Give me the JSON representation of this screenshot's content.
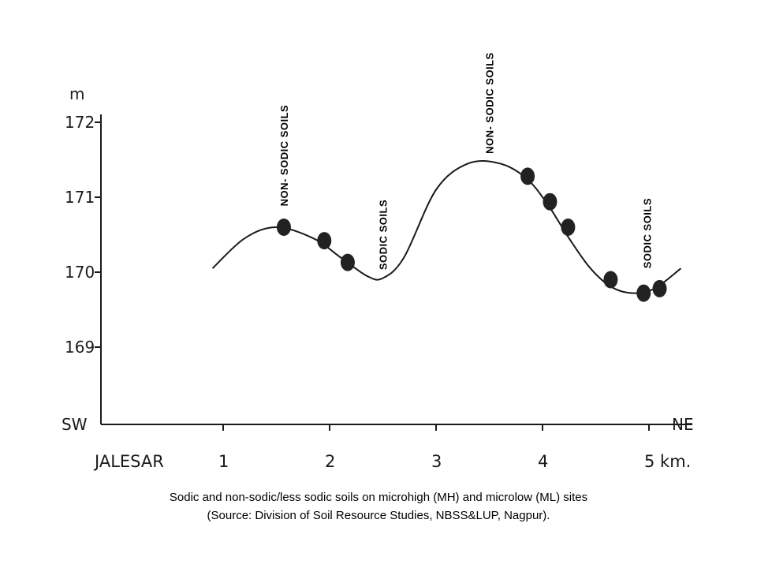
{
  "chart_data": {
    "type": "line",
    "ylabel": "m",
    "yticks": [
      "172",
      "171",
      "170",
      "169"
    ],
    "ytick_values": [
      172,
      171,
      170,
      169
    ],
    "ylim": [
      168,
      172
    ],
    "xlim": [
      -0.2,
      5.35
    ],
    "xticks": [
      "JALESAR",
      "1",
      "2",
      "3",
      "4",
      "5 km."
    ],
    "xtick_values": [
      0,
      1,
      2,
      3,
      4,
      5
    ],
    "axis_left_label": "SW",
    "axis_right_label": "NE",
    "grid": false,
    "curve": {
      "x": [
        0.9,
        1.2,
        1.5,
        1.85,
        2.1,
        2.35,
        2.5,
        2.7,
        3.0,
        3.3,
        3.6,
        3.85,
        4.05,
        4.25,
        4.45,
        4.65,
        4.85,
        5.05,
        5.3
      ],
      "y": [
        170.05,
        170.45,
        170.6,
        170.45,
        170.2,
        169.95,
        169.92,
        170.2,
        171.1,
        171.45,
        171.45,
        171.25,
        170.9,
        170.45,
        170.05,
        169.8,
        169.72,
        169.78,
        170.05
      ]
    },
    "points": {
      "x": [
        1.57,
        1.95,
        2.17,
        3.86,
        4.07,
        4.24,
        4.64,
        4.95,
        5.1
      ],
      "y": [
        170.6,
        170.42,
        170.13,
        171.28,
        170.94,
        170.6,
        169.9,
        169.72,
        169.78
      ]
    },
    "annotations": [
      {
        "text": "NON- SODIC SOILS",
        "x": 1.57,
        "y": 170.88
      },
      {
        "text": "SODIC SOILS",
        "x": 2.5,
        "y": 170.03
      },
      {
        "text": "NON- SODIC SOILS",
        "x": 3.5,
        "y": 171.58
      },
      {
        "text": "SODIC SOILS",
        "x": 4.98,
        "y": 170.05
      }
    ]
  },
  "caption": {
    "line1": "Sodic and non-sodic/less sodic soils on microhigh (MH) and microlow (ML) sites",
    "line2": "(Source: Division of Soil Resource Studies, NBSS&LUP, Nagpur)."
  },
  "colors": {
    "ink": "#1a1a1a",
    "dot": "#222222",
    "background": "#ffffff"
  }
}
